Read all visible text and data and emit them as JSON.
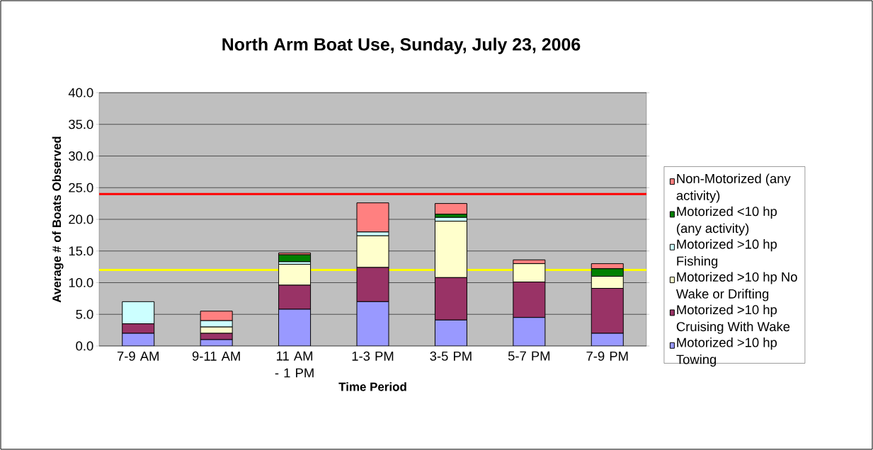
{
  "chart_data": {
    "type": "bar",
    "stacked": true,
    "title": "North Arm Boat Use, Sunday, July 23, 2006",
    "xlabel": "Time Period",
    "ylabel": "Average # of Boats Observed",
    "categories": [
      "7-9 AM",
      "9-11 AM",
      "11 AM - 1 PM",
      "1-3 PM",
      "3-5 PM",
      "5-7 PM",
      "7-9 PM"
    ],
    "series": [
      {
        "name": "Motorized >10 hp Towing",
        "color": "#9999ff",
        "values": [
          2.0,
          1.0,
          5.8,
          7.0,
          4.1,
          4.5,
          2.0
        ]
      },
      {
        "name": "Motorized >10 hp Cruising With Wake",
        "color": "#993366",
        "values": [
          1.5,
          1.0,
          3.8,
          5.4,
          6.7,
          5.6,
          7.1
        ]
      },
      {
        "name": "Motorized >10 hp No Wake or Drifting",
        "color": "#ffffcc",
        "values": [
          0,
          1.0,
          3.3,
          5.0,
          8.9,
          2.9,
          1.9
        ]
      },
      {
        "name": "Motorized >10 hp Fishing",
        "color": "#ccffff",
        "values": [
          3.5,
          1.0,
          0.4,
          0.6,
          0.6,
          0,
          0
        ]
      },
      {
        "name": "Motorized <10 hp (any activity)",
        "color": "#008000",
        "values": [
          0,
          0,
          1.1,
          0,
          0.5,
          0,
          1.2
        ]
      },
      {
        "name": "Non-Motorized (any activity)",
        "color": "#ff8080",
        "values": [
          0,
          1.5,
          0.3,
          4.6,
          1.7,
          0.6,
          0.8
        ]
      }
    ],
    "ylim": [
      0,
      40
    ],
    "yticks": [
      {
        "value": 0,
        "label": "0.0"
      },
      {
        "value": 5,
        "label": "5.0"
      },
      {
        "value": 10,
        "label": "10.0"
      },
      {
        "value": 15,
        "label": "15.0"
      },
      {
        "value": 20,
        "label": "20.0"
      },
      {
        "value": 25,
        "label": "25.0"
      },
      {
        "value": 30,
        "label": "30.0"
      },
      {
        "value": 35,
        "label": "35.0"
      },
      {
        "value": 40,
        "label": "40.0"
      }
    ],
    "ref_lines": [
      {
        "axis": "y",
        "value": 24,
        "color": "#ff0000"
      },
      {
        "axis": "y",
        "value": 12,
        "color": "#ffff00"
      }
    ],
    "grid": "y",
    "legend": "right"
  }
}
